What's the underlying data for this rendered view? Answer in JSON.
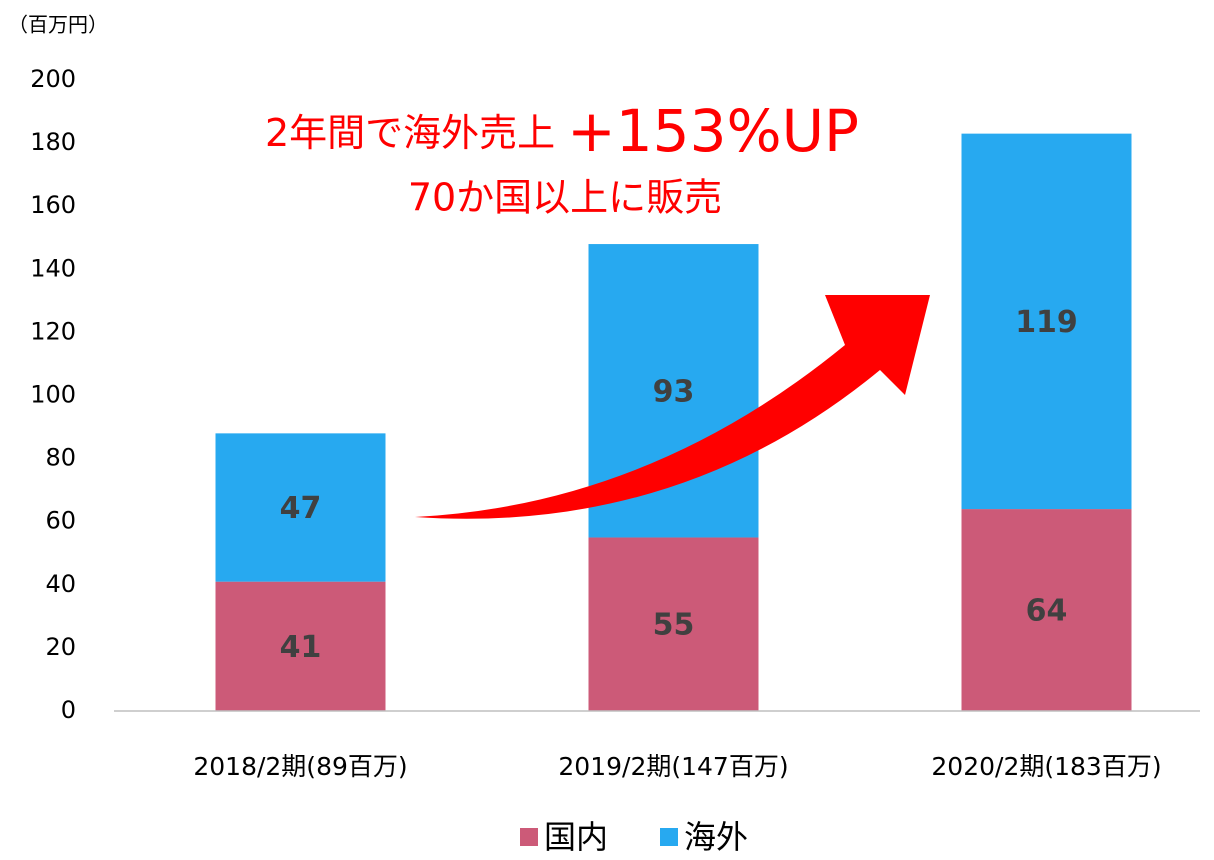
{
  "chart_data": {
    "type": "stacked_bar",
    "y_unit_label": "（百万円）",
    "annotations": [
      "2年間で海外売上",
      "+153%UP",
      "70か国以上に販売"
    ],
    "categories": [
      "2018/2期(89百万)",
      "2019/2期(147百万)",
      "2020/2期(183百万)"
    ],
    "series": [
      {
        "name": "国内",
        "color": "#cc5a78",
        "values": [
          41,
          55,
          64
        ]
      },
      {
        "name": "海外",
        "color": "#27a9f0",
        "values": [
          47,
          93,
          119
        ]
      }
    ],
    "ylim": [
      0,
      200
    ],
    "yticks": [
      0,
      20,
      40,
      60,
      80,
      100,
      120,
      140,
      160,
      180,
      200
    ],
    "grid": false,
    "legend": "bottom"
  }
}
